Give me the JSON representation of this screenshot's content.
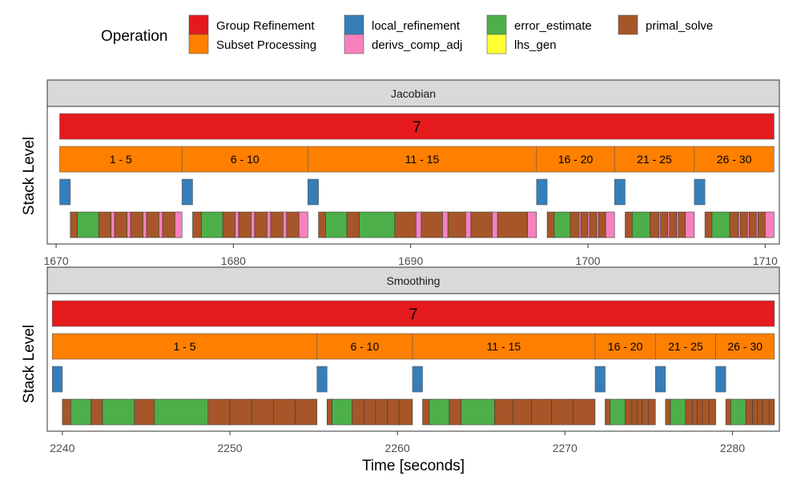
{
  "chart_data": {
    "type": "gantt",
    "legend": {
      "title": "Operation",
      "position": "top",
      "items": [
        {
          "name": "Group Refinement",
          "color": "#E41A1C"
        },
        {
          "name": "Subset Processing",
          "color": "#FF7F00"
        },
        {
          "name": "local_refinement",
          "color": "#377EB8"
        },
        {
          "name": "derivs_comp_adj",
          "color": "#F781BF"
        },
        {
          "name": "error_estimate",
          "color": "#4DAF4A"
        },
        {
          "name": "lhs_gen",
          "color": "#FFFF33"
        },
        {
          "name": "primal_solve",
          "color": "#A65628"
        }
      ]
    },
    "xlabel": "Time [seconds]",
    "ylabel": "Stack Level",
    "panels": [
      {
        "title": "Jacobian",
        "xlim": [
          1669.5,
          1710.8
        ],
        "xticks": [
          1670,
          1680,
          1690,
          1700,
          1710
        ],
        "group": {
          "start": 1670.2,
          "end": 1710.5,
          "label": "7"
        },
        "subsets": [
          {
            "start": 1670.2,
            "end": 1677.1,
            "label": "1 - 5"
          },
          {
            "start": 1677.1,
            "end": 1684.2,
            "label": "6 - 10"
          },
          {
            "start": 1684.2,
            "end": 1697.1,
            "label": "11 - 15"
          },
          {
            "start": 1697.1,
            "end": 1701.5,
            "label": "16 - 20"
          },
          {
            "start": 1701.5,
            "end": 1706.0,
            "label": "21 - 25"
          },
          {
            "start": 1706.0,
            "end": 1710.5,
            "label": "26 - 30"
          }
        ],
        "local_refinement": [
          {
            "start": 1670.2,
            "end": 1670.8
          },
          {
            "start": 1677.1,
            "end": 1677.7
          },
          {
            "start": 1684.2,
            "end": 1684.8
          },
          {
            "start": 1697.1,
            "end": 1697.7
          },
          {
            "start": 1701.5,
            "end": 1702.1
          },
          {
            "start": 1706.0,
            "end": 1706.6
          }
        ],
        "operations": [
          {
            "op": "primal_solve",
            "start": 1670.8,
            "end": 1671.2
          },
          {
            "op": "error_estimate",
            "start": 1671.2,
            "end": 1672.4
          },
          {
            "op": "primal_solve",
            "start": 1672.4,
            "end": 1673.1
          },
          {
            "op": "derivs_comp_adj",
            "start": 1673.1,
            "end": 1673.3
          },
          {
            "op": "primal_solve",
            "start": 1673.3,
            "end": 1674.0
          },
          {
            "op": "derivs_comp_adj",
            "start": 1674.0,
            "end": 1674.2
          },
          {
            "op": "primal_solve",
            "start": 1674.2,
            "end": 1674.9
          },
          {
            "op": "derivs_comp_adj",
            "start": 1674.9,
            "end": 1675.1
          },
          {
            "op": "primal_solve",
            "start": 1675.1,
            "end": 1675.8
          },
          {
            "op": "derivs_comp_adj",
            "start": 1675.8,
            "end": 1676.0
          },
          {
            "op": "primal_solve",
            "start": 1676.0,
            "end": 1676.7
          },
          {
            "op": "derivs_comp_adj",
            "start": 1676.7,
            "end": 1677.1
          },
          {
            "op": "primal_solve",
            "start": 1677.7,
            "end": 1678.2
          },
          {
            "op": "error_estimate",
            "start": 1678.2,
            "end": 1679.4
          },
          {
            "op": "primal_solve",
            "start": 1679.4,
            "end": 1680.1
          },
          {
            "op": "derivs_comp_adj",
            "start": 1680.1,
            "end": 1680.3
          },
          {
            "op": "primal_solve",
            "start": 1680.3,
            "end": 1681.0
          },
          {
            "op": "derivs_comp_adj",
            "start": 1681.0,
            "end": 1681.2
          },
          {
            "op": "primal_solve",
            "start": 1681.2,
            "end": 1681.9
          },
          {
            "op": "derivs_comp_adj",
            "start": 1681.9,
            "end": 1682.1
          },
          {
            "op": "primal_solve",
            "start": 1682.1,
            "end": 1682.8
          },
          {
            "op": "derivs_comp_adj",
            "start": 1682.8,
            "end": 1683.0
          },
          {
            "op": "primal_solve",
            "start": 1683.0,
            "end": 1683.7
          },
          {
            "op": "derivs_comp_adj",
            "start": 1683.7,
            "end": 1684.2
          },
          {
            "op": "primal_solve",
            "start": 1684.8,
            "end": 1685.2
          },
          {
            "op": "error_estimate",
            "start": 1685.2,
            "end": 1686.4
          },
          {
            "op": "primal_solve",
            "start": 1686.4,
            "end": 1687.1
          },
          {
            "op": "error_estimate",
            "start": 1687.1,
            "end": 1689.1
          },
          {
            "op": "primal_solve",
            "start": 1689.1,
            "end": 1690.3
          },
          {
            "op": "derivs_comp_adj",
            "start": 1690.3,
            "end": 1690.6
          },
          {
            "op": "primal_solve",
            "start": 1690.6,
            "end": 1691.8
          },
          {
            "op": "derivs_comp_adj",
            "start": 1691.8,
            "end": 1692.1
          },
          {
            "op": "primal_solve",
            "start": 1692.1,
            "end": 1693.1
          },
          {
            "op": "derivs_comp_adj",
            "start": 1693.1,
            "end": 1693.4
          },
          {
            "op": "primal_solve",
            "start": 1693.4,
            "end": 1694.6
          },
          {
            "op": "derivs_comp_adj",
            "start": 1694.6,
            "end": 1694.9
          },
          {
            "op": "primal_solve",
            "start": 1694.9,
            "end": 1696.6
          },
          {
            "op": "derivs_comp_adj",
            "start": 1696.6,
            "end": 1697.1
          },
          {
            "op": "primal_solve",
            "start": 1697.7,
            "end": 1698.1
          },
          {
            "op": "error_estimate",
            "start": 1698.1,
            "end": 1699.0
          },
          {
            "op": "primal_solve",
            "start": 1699.0,
            "end": 1699.5
          },
          {
            "op": "derivs_comp_adj",
            "start": 1699.5,
            "end": 1699.6
          },
          {
            "op": "primal_solve",
            "start": 1699.6,
            "end": 1700.0
          },
          {
            "op": "derivs_comp_adj",
            "start": 1700.0,
            "end": 1700.1
          },
          {
            "op": "primal_solve",
            "start": 1700.1,
            "end": 1700.5
          },
          {
            "op": "derivs_comp_adj",
            "start": 1700.5,
            "end": 1700.6
          },
          {
            "op": "primal_solve",
            "start": 1700.6,
            "end": 1701.0
          },
          {
            "op": "derivs_comp_adj",
            "start": 1701.0,
            "end": 1701.5
          },
          {
            "op": "primal_solve",
            "start": 1702.1,
            "end": 1702.5
          },
          {
            "op": "error_estimate",
            "start": 1702.5,
            "end": 1703.5
          },
          {
            "op": "primal_solve",
            "start": 1703.5,
            "end": 1704.0
          },
          {
            "op": "derivs_comp_adj",
            "start": 1704.0,
            "end": 1704.1
          },
          {
            "op": "primal_solve",
            "start": 1704.1,
            "end": 1704.5
          },
          {
            "op": "derivs_comp_adj",
            "start": 1704.5,
            "end": 1704.6
          },
          {
            "op": "primal_solve",
            "start": 1704.6,
            "end": 1705.0
          },
          {
            "op": "derivs_comp_adj",
            "start": 1705.0,
            "end": 1705.1
          },
          {
            "op": "primal_solve",
            "start": 1705.1,
            "end": 1705.5
          },
          {
            "op": "derivs_comp_adj",
            "start": 1705.5,
            "end": 1706.0
          },
          {
            "op": "primal_solve",
            "start": 1706.6,
            "end": 1707.0
          },
          {
            "op": "error_estimate",
            "start": 1707.0,
            "end": 1708.0
          },
          {
            "op": "primal_solve",
            "start": 1708.0,
            "end": 1708.5
          },
          {
            "op": "derivs_comp_adj",
            "start": 1708.5,
            "end": 1708.6
          },
          {
            "op": "primal_solve",
            "start": 1708.6,
            "end": 1709.0
          },
          {
            "op": "derivs_comp_adj",
            "start": 1709.0,
            "end": 1709.1
          },
          {
            "op": "primal_solve",
            "start": 1709.1,
            "end": 1709.5
          },
          {
            "op": "derivs_comp_adj",
            "start": 1709.5,
            "end": 1709.6
          },
          {
            "op": "primal_solve",
            "start": 1709.6,
            "end": 1710.0
          },
          {
            "op": "derivs_comp_adj",
            "start": 1710.0,
            "end": 1710.5
          }
        ]
      },
      {
        "title": "Smoothing",
        "xlim": [
          2239.1,
          2282.8
        ],
        "xticks": [
          2240,
          2250,
          2260,
          2270,
          2280
        ],
        "group": {
          "start": 2239.4,
          "end": 2282.5,
          "label": "7"
        },
        "subsets": [
          {
            "start": 2239.4,
            "end": 2255.2,
            "label": "1 - 5"
          },
          {
            "start": 2255.2,
            "end": 2260.9,
            "label": "6 - 10"
          },
          {
            "start": 2260.9,
            "end": 2271.8,
            "label": "11 - 15"
          },
          {
            "start": 2271.8,
            "end": 2275.4,
            "label": "16 - 20"
          },
          {
            "start": 2275.4,
            "end": 2279.0,
            "label": "21 - 25"
          },
          {
            "start": 2279.0,
            "end": 2282.5,
            "label": "26 - 30"
          }
        ],
        "local_refinement": [
          {
            "start": 2239.4,
            "end": 2240.0
          },
          {
            "start": 2255.2,
            "end": 2255.8
          },
          {
            "start": 2260.9,
            "end": 2261.5
          },
          {
            "start": 2271.8,
            "end": 2272.4
          },
          {
            "start": 2275.4,
            "end": 2276.0
          },
          {
            "start": 2279.0,
            "end": 2279.6
          }
        ],
        "operations": [
          {
            "op": "primal_solve",
            "start": 2240.0,
            "end": 2240.5
          },
          {
            "op": "error_estimate",
            "start": 2240.5,
            "end": 2241.7
          },
          {
            "op": "primal_solve",
            "start": 2241.7,
            "end": 2242.4
          },
          {
            "op": "error_estimate",
            "start": 2242.4,
            "end": 2244.3
          },
          {
            "op": "primal_solve",
            "start": 2244.3,
            "end": 2245.5
          },
          {
            "op": "error_estimate",
            "start": 2245.5,
            "end": 2248.7
          },
          {
            "op": "primal_solve",
            "start": 2248.7,
            "end": 2250.0
          },
          {
            "op": "primal_solve",
            "start": 2250.0,
            "end": 2251.3
          },
          {
            "op": "primal_solve",
            "start": 2251.3,
            "end": 2252.6
          },
          {
            "op": "primal_solve",
            "start": 2252.6,
            "end": 2253.9
          },
          {
            "op": "primal_solve",
            "start": 2253.9,
            "end": 2255.2
          },
          {
            "op": "primal_solve",
            "start": 2255.8,
            "end": 2256.1
          },
          {
            "op": "error_estimate",
            "start": 2256.1,
            "end": 2257.3
          },
          {
            "op": "primal_solve",
            "start": 2257.3,
            "end": 2258.0
          },
          {
            "op": "primal_solve",
            "start": 2258.0,
            "end": 2258.7
          },
          {
            "op": "primal_solve",
            "start": 2258.7,
            "end": 2259.4
          },
          {
            "op": "primal_solve",
            "start": 2259.4,
            "end": 2260.1
          },
          {
            "op": "primal_solve",
            "start": 2260.1,
            "end": 2260.9
          },
          {
            "op": "primal_solve",
            "start": 2261.5,
            "end": 2261.9
          },
          {
            "op": "error_estimate",
            "start": 2261.9,
            "end": 2263.1
          },
          {
            "op": "primal_solve",
            "start": 2263.1,
            "end": 2263.8
          },
          {
            "op": "error_estimate",
            "start": 2263.8,
            "end": 2265.8
          },
          {
            "op": "primal_solve",
            "start": 2265.8,
            "end": 2266.9
          },
          {
            "op": "primal_solve",
            "start": 2266.9,
            "end": 2268.0
          },
          {
            "op": "primal_solve",
            "start": 2268.0,
            "end": 2269.2
          },
          {
            "op": "primal_solve",
            "start": 2269.2,
            "end": 2270.5
          },
          {
            "op": "primal_solve",
            "start": 2270.5,
            "end": 2271.8
          },
          {
            "op": "primal_solve",
            "start": 2272.4,
            "end": 2272.7
          },
          {
            "op": "error_estimate",
            "start": 2272.7,
            "end": 2273.6
          },
          {
            "op": "primal_solve",
            "start": 2273.6,
            "end": 2274.0
          },
          {
            "op": "primal_solve",
            "start": 2274.0,
            "end": 2274.3
          },
          {
            "op": "primal_solve",
            "start": 2274.3,
            "end": 2274.6
          },
          {
            "op": "primal_solve",
            "start": 2274.6,
            "end": 2275.0
          },
          {
            "op": "primal_solve",
            "start": 2275.0,
            "end": 2275.4
          },
          {
            "op": "primal_solve",
            "start": 2276.0,
            "end": 2276.3
          },
          {
            "op": "error_estimate",
            "start": 2276.3,
            "end": 2277.2
          },
          {
            "op": "primal_solve",
            "start": 2277.2,
            "end": 2277.6
          },
          {
            "op": "primal_solve",
            "start": 2277.6,
            "end": 2277.9
          },
          {
            "op": "primal_solve",
            "start": 2277.9,
            "end": 2278.2
          },
          {
            "op": "primal_solve",
            "start": 2278.2,
            "end": 2278.6
          },
          {
            "op": "primal_solve",
            "start": 2278.6,
            "end": 2279.0
          },
          {
            "op": "primal_solve",
            "start": 2279.6,
            "end": 2279.9
          },
          {
            "op": "error_estimate",
            "start": 2279.9,
            "end": 2280.8
          },
          {
            "op": "primal_solve",
            "start": 2280.8,
            "end": 2281.2
          },
          {
            "op": "primal_solve",
            "start": 2281.2,
            "end": 2281.5
          },
          {
            "op": "primal_solve",
            "start": 2281.5,
            "end": 2281.8
          },
          {
            "op": "primal_solve",
            "start": 2281.8,
            "end": 2282.2
          },
          {
            "op": "primal_solve",
            "start": 2282.2,
            "end": 2282.5
          }
        ]
      }
    ]
  }
}
